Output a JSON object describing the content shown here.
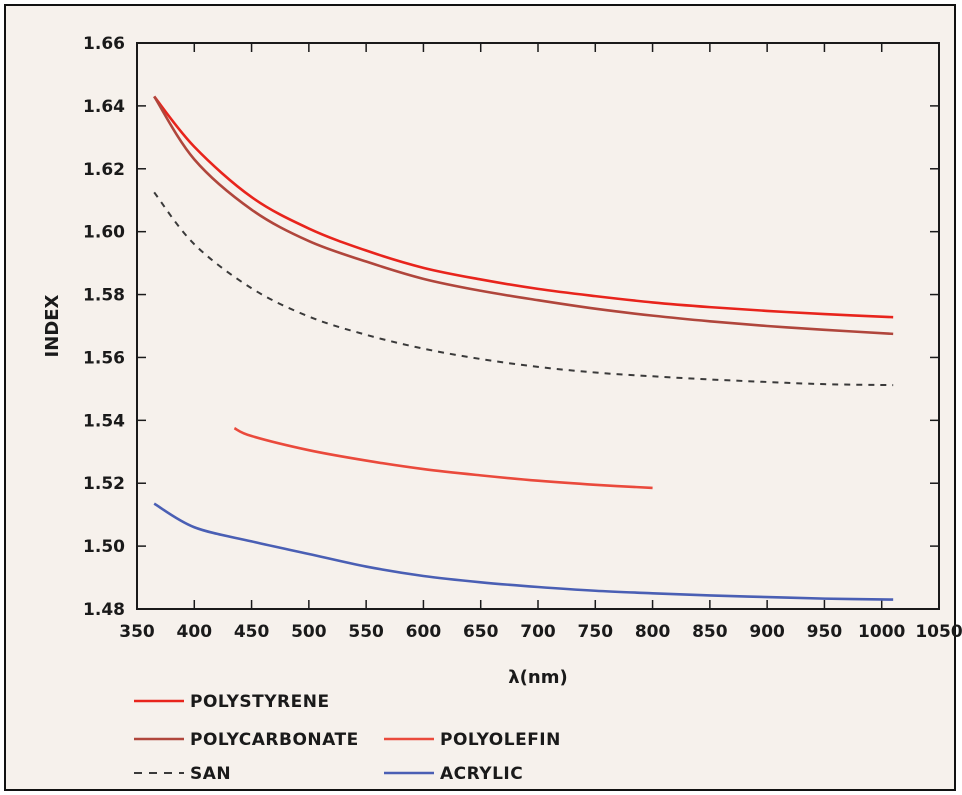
{
  "chart_data": {
    "type": "line",
    "title": "",
    "xlabel": "λ(nm)",
    "ylabel": "INDEX",
    "xlim": [
      350,
      1050
    ],
    "ylim": [
      1.48,
      1.66
    ],
    "xticks": [
      350,
      400,
      450,
      500,
      550,
      600,
      650,
      700,
      750,
      800,
      850,
      900,
      950,
      1000,
      1050
    ],
    "yticks": [
      1.48,
      1.5,
      1.52,
      1.54,
      1.56,
      1.58,
      1.6,
      1.62,
      1.64,
      1.66
    ],
    "xtick_labels": [
      "350",
      "400",
      "450",
      "500",
      "550",
      "600",
      "650",
      "700",
      "750",
      "800",
      "850",
      "900",
      "950",
      "1000",
      "1050"
    ],
    "ytick_labels": [
      "1.48",
      "1.50",
      "1.52",
      "1.54",
      "1.56",
      "1.58",
      "1.60",
      "1.62",
      "1.64",
      "1.66"
    ],
    "grid": false,
    "legend_position": "bottom",
    "series": [
      {
        "name": "POLYSTYRENE",
        "color": "#e8241c",
        "dash": "solid",
        "x": [
          365,
          400,
          450,
          500,
          550,
          600,
          650,
          700,
          750,
          800,
          850,
          900,
          950,
          1010
        ],
        "y": [
          1.643,
          1.627,
          1.611,
          1.601,
          1.594,
          1.5885,
          1.5848,
          1.5818,
          1.5795,
          1.5775,
          1.576,
          1.5748,
          1.5738,
          1.5728
        ]
      },
      {
        "name": "POLYCARBONATE",
        "color": "#b0463c",
        "dash": "solid",
        "x": [
          365,
          400,
          450,
          500,
          550,
          600,
          650,
          700,
          750,
          800,
          850,
          900,
          950,
          1010
        ],
        "y": [
          1.643,
          1.623,
          1.607,
          1.597,
          1.5905,
          1.585,
          1.5812,
          1.5782,
          1.5755,
          1.5733,
          1.5715,
          1.57,
          1.5688,
          1.5675
        ]
      },
      {
        "name": "POLYOLEFIN",
        "color": "#ea4a3c",
        "dash": "solid",
        "x": [
          435,
          450,
          500,
          550,
          600,
          650,
          700,
          750,
          800
        ],
        "y": [
          1.5375,
          1.535,
          1.5305,
          1.5272,
          1.5245,
          1.5225,
          1.5208,
          1.5195,
          1.5185
        ]
      },
      {
        "name": "SAN",
        "color": "#3a3a3a",
        "dash": "dashed",
        "x": [
          365,
          400,
          450,
          500,
          550,
          600,
          650,
          700,
          750,
          800,
          850,
          900,
          950,
          1010
        ],
        "y": [
          1.6125,
          1.596,
          1.582,
          1.573,
          1.5672,
          1.5628,
          1.5595,
          1.557,
          1.5552,
          1.554,
          1.553,
          1.5522,
          1.5515,
          1.5512
        ]
      },
      {
        "name": "ACRYLIC",
        "color": "#4a5fb4",
        "dash": "solid",
        "x": [
          365,
          400,
          450,
          500,
          550,
          600,
          650,
          700,
          750,
          800,
          850,
          900,
          950,
          1010
        ],
        "y": [
          1.5135,
          1.506,
          1.5015,
          1.4975,
          1.4935,
          1.4905,
          1.4885,
          1.487,
          1.4858,
          1.485,
          1.4843,
          1.4838,
          1.4833,
          1.483
        ]
      }
    ]
  }
}
